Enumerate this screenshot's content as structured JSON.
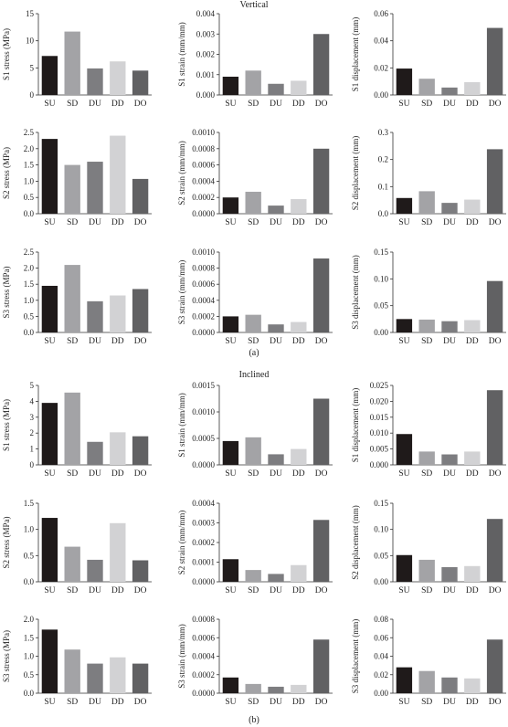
{
  "figure": {
    "section_a_title": "Vertical",
    "section_b_title": "Inclined",
    "caption_a": "(a)",
    "caption_b": "(b)"
  },
  "colors": {
    "SU": "#1f1a1a",
    "SD": "#a3a3a6",
    "DU": "#7d7d80",
    "DD": "#d2d2d4",
    "DO": "#616163"
  },
  "chart_data": [
    {
      "type": "bar",
      "section": "Vertical",
      "title": "",
      "categories": [
        "SU",
        "SD",
        "DU",
        "DD",
        "DO"
      ],
      "values": [
        7.2,
        11.7,
        4.9,
        6.2,
        4.5
      ],
      "ylabel": "S1 stress (MPa)",
      "xlabel": "",
      "ylim": [
        0,
        15
      ],
      "yticks": [
        "0",
        "5",
        "10",
        "15"
      ]
    },
    {
      "type": "bar",
      "section": "Vertical",
      "title": "",
      "categories": [
        "SU",
        "SD",
        "DU",
        "DD",
        "DO"
      ],
      "values": [
        0.0009,
        0.0012,
        0.00055,
        0.0007,
        0.003
      ],
      "ylabel": "S1 strain (mm/mm)",
      "xlabel": "",
      "ylim": [
        0,
        0.004
      ],
      "yticks": [
        "0.000",
        "0.001",
        "0.002",
        "0.003",
        "0.004"
      ]
    },
    {
      "type": "bar",
      "section": "Vertical",
      "title": "",
      "categories": [
        "SU",
        "SD",
        "DU",
        "DD",
        "DO"
      ],
      "values": [
        0.0195,
        0.012,
        0.0055,
        0.0095,
        0.0495
      ],
      "ylabel": "S1 displacement (mm)",
      "xlabel": "",
      "ylim": [
        0,
        0.06
      ],
      "yticks": [
        "0.00",
        "0.02",
        "0.04",
        "0.06"
      ]
    },
    {
      "type": "bar",
      "section": "Vertical",
      "title": "",
      "categories": [
        "SU",
        "SD",
        "DU",
        "DD",
        "DO"
      ],
      "values": [
        2.3,
        1.5,
        1.6,
        2.4,
        1.07
      ],
      "ylabel": "S2 stress (MPa)",
      "xlabel": "",
      "ylim": [
        0,
        2.5
      ],
      "yticks": [
        "0.0",
        "0.5",
        "1.0",
        "1.5",
        "2.0",
        "2.5"
      ]
    },
    {
      "type": "bar",
      "section": "Vertical",
      "title": "",
      "categories": [
        "SU",
        "SD",
        "DU",
        "DD",
        "DO"
      ],
      "values": [
        0.0002,
        0.00027,
        0.0001,
        0.00018,
        0.0008
      ],
      "ylabel": "S2 strain (mm/mm)",
      "xlabel": "",
      "ylim": [
        0,
        0.001
      ],
      "yticks": [
        "0.0000",
        "0.0002",
        "0.0004",
        "0.0006",
        "0.0008",
        "0.0010"
      ]
    },
    {
      "type": "bar",
      "section": "Vertical",
      "title": "",
      "categories": [
        "SU",
        "SD",
        "DU",
        "DD",
        "DO"
      ],
      "values": [
        0.058,
        0.083,
        0.04,
        0.052,
        0.238
      ],
      "ylabel": "S2 displacement (mm)",
      "xlabel": "",
      "ylim": [
        0,
        0.3
      ],
      "yticks": [
        "0.0",
        "0.1",
        "0.2",
        "0.3"
      ]
    },
    {
      "type": "bar",
      "section": "Vertical",
      "title": "",
      "categories": [
        "SU",
        "SD",
        "DU",
        "DD",
        "DO"
      ],
      "values": [
        1.45,
        2.1,
        0.97,
        1.15,
        1.35
      ],
      "ylabel": "S3 stress (MPa)",
      "xlabel": "",
      "ylim": [
        0,
        2.5
      ],
      "yticks": [
        "0.0",
        "0.5",
        "1.0",
        "1.5",
        "2.0",
        "2.5"
      ]
    },
    {
      "type": "bar",
      "section": "Vertical",
      "title": "",
      "categories": [
        "SU",
        "SD",
        "DU",
        "DD",
        "DO"
      ],
      "values": [
        0.0002,
        0.00022,
        0.0001,
        0.00013,
        0.00092
      ],
      "ylabel": "S3 strain (mm/mm)",
      "xlabel": "",
      "ylim": [
        0,
        0.001
      ],
      "yticks": [
        "0.0000",
        "0.0002",
        "0.0004",
        "0.0006",
        "0.0008",
        "0.0010"
      ]
    },
    {
      "type": "bar",
      "section": "Vertical",
      "title": "",
      "categories": [
        "SU",
        "SD",
        "DU",
        "DD",
        "DO"
      ],
      "values": [
        0.025,
        0.024,
        0.021,
        0.023,
        0.096
      ],
      "ylabel": "S3 displacement (mm)",
      "xlabel": "",
      "ylim": [
        0,
        0.15
      ],
      "yticks": [
        "0.00",
        "0.05",
        "0.10",
        "0.15"
      ]
    },
    {
      "type": "bar",
      "section": "Inclined",
      "title": "",
      "categories": [
        "SU",
        "SD",
        "DU",
        "DD",
        "DO"
      ],
      "values": [
        3.9,
        4.55,
        1.45,
        2.05,
        1.8
      ],
      "ylabel": "S1 stress (MPa)",
      "xlabel": "",
      "ylim": [
        0,
        5
      ],
      "yticks": [
        "0",
        "1",
        "2",
        "3",
        "4",
        "5"
      ]
    },
    {
      "type": "bar",
      "section": "Inclined",
      "title": "",
      "categories": [
        "SU",
        "SD",
        "DU",
        "DD",
        "DO"
      ],
      "values": [
        0.00045,
        0.00052,
        0.0002,
        0.0003,
        0.00125
      ],
      "ylabel": "S1 strain (mm/mm)",
      "xlabel": "",
      "ylim": [
        0,
        0.0015
      ],
      "yticks": [
        "0.0000",
        "0.0005",
        "0.0010",
        "0.0015"
      ]
    },
    {
      "type": "bar",
      "section": "Inclined",
      "title": "",
      "categories": [
        "SU",
        "SD",
        "DU",
        "DD",
        "DO"
      ],
      "values": [
        0.0097,
        0.0042,
        0.0033,
        0.0042,
        0.0235
      ],
      "ylabel": "S1 displacement (mm)",
      "xlabel": "",
      "ylim": [
        0,
        0.025
      ],
      "yticks": [
        "0.000",
        "0.005",
        "0.010",
        "0.015",
        "0.020",
        "0.025"
      ]
    },
    {
      "type": "bar",
      "section": "Inclined",
      "title": "",
      "categories": [
        "SU",
        "SD",
        "DU",
        "DD",
        "DO"
      ],
      "values": [
        1.22,
        0.67,
        0.42,
        1.12,
        0.41
      ],
      "ylabel": "S2 stress (MPa)",
      "xlabel": "",
      "ylim": [
        0,
        1.5
      ],
      "yticks": [
        "0.0",
        "0.5",
        "1.0",
        "1.5"
      ]
    },
    {
      "type": "bar",
      "section": "Inclined",
      "title": "",
      "categories": [
        "SU",
        "SD",
        "DU",
        "DD",
        "DO"
      ],
      "values": [
        0.000115,
        6e-05,
        4e-05,
        8.5e-05,
        0.000315
      ],
      "ylabel": "S2 strain (mm/mm)",
      "xlabel": "",
      "ylim": [
        0,
        0.0004
      ],
      "yticks": [
        "0.0000",
        "0.0001",
        "0.0002",
        "0.0003",
        "0.0004"
      ]
    },
    {
      "type": "bar",
      "section": "Inclined",
      "title": "",
      "categories": [
        "SU",
        "SD",
        "DU",
        "DD",
        "DO"
      ],
      "values": [
        0.051,
        0.042,
        0.028,
        0.03,
        0.12
      ],
      "ylabel": "S2 displacement (mm)",
      "xlabel": "",
      "ylim": [
        0,
        0.15
      ],
      "yticks": [
        "0.00",
        "0.05",
        "0.10",
        "0.15"
      ]
    },
    {
      "type": "bar",
      "section": "Inclined",
      "title": "",
      "categories": [
        "SU",
        "SD",
        "DU",
        "DD",
        "DO"
      ],
      "values": [
        1.72,
        1.18,
        0.8,
        0.97,
        0.8
      ],
      "ylabel": "S3 stress (MPa)",
      "xlabel": "",
      "ylim": [
        0,
        2.0
      ],
      "yticks": [
        "0.0",
        "0.5",
        "1.0",
        "1.5",
        "2.0"
      ]
    },
    {
      "type": "bar",
      "section": "Inclined",
      "title": "",
      "categories": [
        "SU",
        "SD",
        "DU",
        "DD",
        "DO"
      ],
      "values": [
        0.00017,
        0.0001,
        7e-05,
        9e-05,
        0.00058
      ],
      "ylabel": "S3 strain (mm/mm)",
      "xlabel": "",
      "ylim": [
        0,
        0.0008
      ],
      "yticks": [
        "0.0000",
        "0.0002",
        "0.0004",
        "0.0006",
        "0.0008"
      ]
    },
    {
      "type": "bar",
      "section": "Inclined",
      "title": "",
      "categories": [
        "SU",
        "SD",
        "DU",
        "DD",
        "DO"
      ],
      "values": [
        0.028,
        0.024,
        0.017,
        0.016,
        0.058
      ],
      "ylabel": "S3 displacement (mm)",
      "xlabel": "",
      "ylim": [
        0,
        0.08
      ],
      "yticks": [
        "0.00",
        "0.02",
        "0.04",
        "0.06",
        "0.08"
      ]
    }
  ]
}
